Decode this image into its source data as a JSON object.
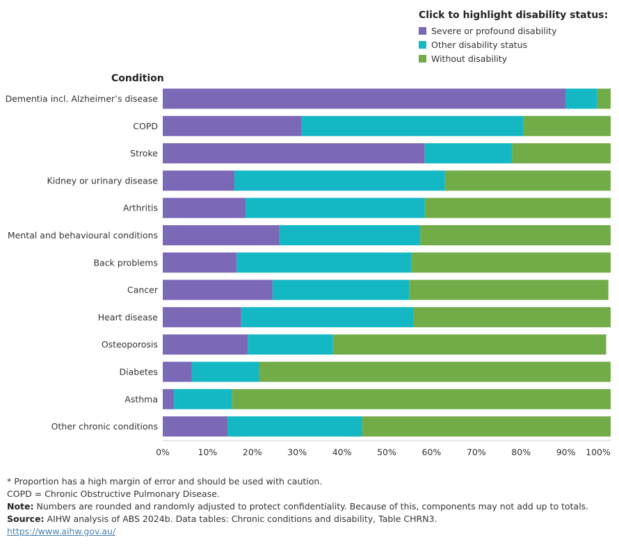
{
  "chart_data": {
    "type": "bar",
    "orientation": "horizontal",
    "stacked": true,
    "y_axis_title": "Condition",
    "categories": [
      "Dementia incl. Alzheimer’s disease",
      "COPD",
      "Stroke",
      "Kidney or urinary disease",
      "Arthritis",
      "Mental and behavioural conditions",
      "Back problems",
      "Cancer",
      "Heart disease",
      "Osteoporosis",
      "Diabetes",
      "Asthma",
      "Other chronic conditions"
    ],
    "series": [
      {
        "name": "Severe or profound disability",
        "color": "#7b68b6",
        "values": [
          90.0,
          31.0,
          58.5,
          16.0,
          18.5,
          26.0,
          16.5,
          24.5,
          17.5,
          19.0,
          6.5,
          2.5,
          14.5
        ]
      },
      {
        "name": "Other disability status",
        "color": "#14b8c4",
        "values": [
          7.0,
          49.5,
          19.5,
          47.0,
          40.0,
          31.5,
          39.0,
          30.5,
          38.5,
          19.0,
          15.0,
          13.0,
          30.0
        ]
      },
      {
        "name": "Without disability",
        "color": "#72ac48",
        "values": [
          3.0,
          19.5,
          22.0,
          37.0,
          41.5,
          42.5,
          44.5,
          44.5,
          44.0,
          61.0,
          78.5,
          84.5,
          55.5
        ]
      }
    ],
    "xlim": [
      0,
      100
    ],
    "x_ticks": [
      "0%",
      "10%",
      "20%",
      "30%",
      "40%",
      "50%",
      "60%",
      "70%",
      "80%",
      "90%",
      "100%"
    ],
    "legend_placement": "top-right",
    "grid": false
  },
  "legend": {
    "title": "Click to highlight disability status:",
    "items": [
      {
        "label": "Severe or profound disability",
        "color": "#7b68b6"
      },
      {
        "label": "Other disability status",
        "color": "#14b8c4"
      },
      {
        "label": "Without disability",
        "color": "#72ac48"
      }
    ]
  },
  "notes": {
    "asterisk": "* Proportion has a high margin of error and should be used with caution.",
    "copd": "COPD = Chronic Obstructive Pulmonary Disease.",
    "note_label": "Note:",
    "note_text": " Numbers are rounded and randomly adjusted to protect confidentiality. Because of this, components may not add up to totals.",
    "source_label": "Source:",
    "source_text": " AIHW analysis of ABS 2024b. Data tables: Chronic conditions and disability, Table CHRN3.",
    "link": "https://www.aihw.gov.au/"
  }
}
